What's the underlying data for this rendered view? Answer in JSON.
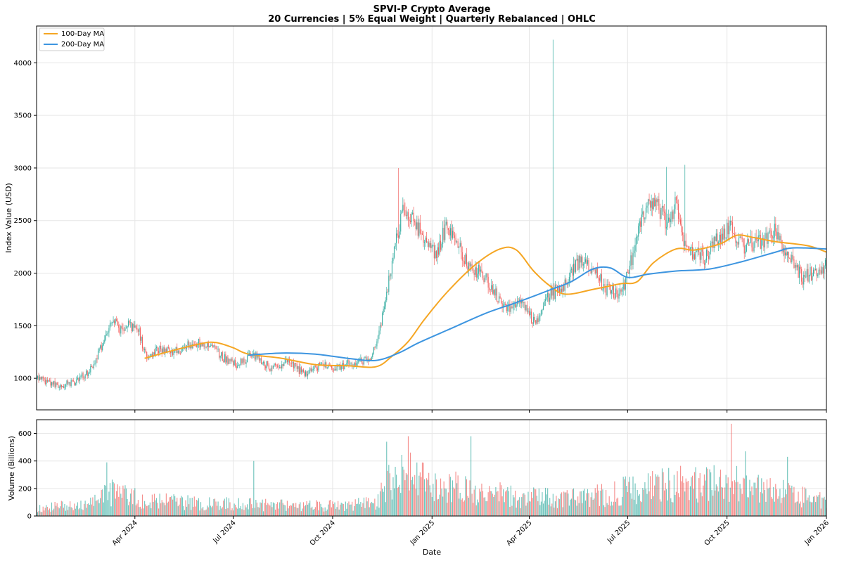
{
  "chart_data": [
    {
      "type": "candlestick",
      "title": "SPVI-P Crypto Average",
      "subtitle": "20 Currencies | 5% Equal Weight | Quarterly Rebalanced | OHLC",
      "ylabel": "Index Value (USD)",
      "ylim": [
        700,
        4350
      ],
      "yticks": [
        1000,
        1500,
        2000,
        2500,
        3000,
        3500,
        4000
      ],
      "xlim": [
        "2024-01-01",
        "2026-01-01"
      ],
      "xticks": [
        "2024-04-01",
        "2024-07-01",
        "2024-10-01",
        "2025-01-01",
        "2025-04-01",
        "2025-07-01",
        "2025-10-01",
        "2026-01-01"
      ],
      "xtick_labels": [
        "Apr 2024",
        "Jul 2024",
        "Oct 2024",
        "Jan 2025",
        "Apr 2025",
        "Jul 2025",
        "Oct 2025",
        "Jan 2026"
      ],
      "up_color": "#26a69a",
      "down_color": "#ef5350",
      "price_anchors": [
        [
          "2024-01-01",
          1010
        ],
        [
          "2024-01-20",
          930
        ],
        [
          "2024-02-05",
          960
        ],
        [
          "2024-02-20",
          1080
        ],
        [
          "2024-03-01",
          1300
        ],
        [
          "2024-03-10",
          1550
        ],
        [
          "2024-03-18",
          1470
        ],
        [
          "2024-03-25",
          1520
        ],
        [
          "2024-04-05",
          1430
        ],
        [
          "2024-04-12",
          1200
        ],
        [
          "2024-04-25",
          1280
        ],
        [
          "2024-05-10",
          1250
        ],
        [
          "2024-05-25",
          1340
        ],
        [
          "2024-06-10",
          1310
        ],
        [
          "2024-06-25",
          1170
        ],
        [
          "2024-07-05",
          1130
        ],
        [
          "2024-07-20",
          1230
        ],
        [
          "2024-08-05",
          1090
        ],
        [
          "2024-08-20",
          1160
        ],
        [
          "2024-09-05",
          1040
        ],
        [
          "2024-09-20",
          1130
        ],
        [
          "2024-10-05",
          1100
        ],
        [
          "2024-10-20",
          1160
        ],
        [
          "2024-11-05",
          1180
        ],
        [
          "2024-11-12",
          1400
        ],
        [
          "2024-11-20",
          1800
        ],
        [
          "2024-11-28",
          2250
        ],
        [
          "2024-12-05",
          2650
        ],
        [
          "2024-12-15",
          2500
        ],
        [
          "2024-12-25",
          2300
        ],
        [
          "2025-01-05",
          2200
        ],
        [
          "2025-01-15",
          2450
        ],
        [
          "2025-01-25",
          2300
        ],
        [
          "2025-02-03",
          2050
        ],
        [
          "2025-02-15",
          2000
        ],
        [
          "2025-03-01",
          1800
        ],
        [
          "2025-03-10",
          1650
        ],
        [
          "2025-03-25",
          1750
        ],
        [
          "2025-04-07",
          1500
        ],
        [
          "2025-04-20",
          1800
        ],
        [
          "2025-05-01",
          1850
        ],
        [
          "2025-05-15",
          2100
        ],
        [
          "2025-05-30",
          2050
        ],
        [
          "2025-06-10",
          1850
        ],
        [
          "2025-06-25",
          1800
        ],
        [
          "2025-07-05",
          2150
        ],
        [
          "2025-07-15",
          2550
        ],
        [
          "2025-07-25",
          2700
        ],
        [
          "2025-08-05",
          2500
        ],
        [
          "2025-08-15",
          2650
        ],
        [
          "2025-08-25",
          2200
        ],
        [
          "2025-09-10",
          2150
        ],
        [
          "2025-09-25",
          2350
        ],
        [
          "2025-10-05",
          2450
        ],
        [
          "2025-10-15",
          2250
        ],
        [
          "2025-11-01",
          2300
        ],
        [
          "2025-11-15",
          2400
        ],
        [
          "2025-11-25",
          2200
        ],
        [
          "2025-12-10",
          1950
        ],
        [
          "2025-12-25",
          2050
        ],
        [
          "2026-01-01",
          2080
        ]
      ],
      "spikes": [
        [
          "2025-04-23",
          4220
        ],
        [
          "2024-12-01",
          3000
        ],
        [
          "2025-08-06",
          3010
        ],
        [
          "2025-08-23",
          3030
        ]
      ],
      "series": [
        {
          "name": "100-Day MA",
          "color": "#f5a623",
          "points": [
            [
              "2024-04-10",
              1190
            ],
            [
              "2024-05-01",
              1250
            ],
            [
              "2024-06-01",
              1330
            ],
            [
              "2024-06-15",
              1340
            ],
            [
              "2024-07-01",
              1290
            ],
            [
              "2024-07-15",
              1230
            ],
            [
              "2024-08-15",
              1190
            ],
            [
              "2024-09-15",
              1130
            ],
            [
              "2024-10-15",
              1120
            ],
            [
              "2024-11-10",
              1110
            ],
            [
              "2024-11-25",
              1210
            ],
            [
              "2024-12-10",
              1350
            ],
            [
              "2024-12-25",
              1560
            ],
            [
              "2025-01-15",
              1820
            ],
            [
              "2025-02-10",
              2080
            ],
            [
              "2025-03-05",
              2230
            ],
            [
              "2025-03-20",
              2220
            ],
            [
              "2025-04-05",
              2020
            ],
            [
              "2025-04-20",
              1880
            ],
            [
              "2025-05-05",
              1800
            ],
            [
              "2025-06-01",
              1850
            ],
            [
              "2025-06-25",
              1900
            ],
            [
              "2025-07-10",
              1920
            ],
            [
              "2025-07-25",
              2100
            ],
            [
              "2025-08-15",
              2230
            ],
            [
              "2025-09-01",
              2220
            ],
            [
              "2025-09-25",
              2280
            ],
            [
              "2025-10-10",
              2360
            ],
            [
              "2025-10-25",
              2340
            ],
            [
              "2025-11-15",
              2300
            ],
            [
              "2025-12-15",
              2260
            ],
            [
              "2026-01-01",
              2200
            ]
          ]
        },
        {
          "name": "200-Day MA",
          "color": "#3d95e0",
          "points": [
            [
              "2024-07-15",
              1220
            ],
            [
              "2024-08-15",
              1240
            ],
            [
              "2024-09-15",
              1230
            ],
            [
              "2024-10-15",
              1190
            ],
            [
              "2024-11-10",
              1170
            ],
            [
              "2024-12-01",
              1240
            ],
            [
              "2024-12-20",
              1340
            ],
            [
              "2025-01-20",
              1480
            ],
            [
              "2025-02-20",
              1620
            ],
            [
              "2025-03-20",
              1720
            ],
            [
              "2025-04-20",
              1840
            ],
            [
              "2025-05-10",
              1920
            ],
            [
              "2025-05-30",
              2040
            ],
            [
              "2025-06-15",
              2050
            ],
            [
              "2025-07-01",
              1960
            ],
            [
              "2025-07-20",
              1990
            ],
            [
              "2025-08-15",
              2020
            ],
            [
              "2025-09-15",
              2040
            ],
            [
              "2025-10-15",
              2110
            ],
            [
              "2025-11-15",
              2200
            ],
            [
              "2025-12-01",
              2240
            ],
            [
              "2026-01-01",
              2230
            ]
          ]
        }
      ],
      "legend": {
        "position": "top-left",
        "entries": [
          "100-Day MA",
          "200-Day MA"
        ]
      }
    },
    {
      "type": "bar",
      "title": "",
      "xlabel": "Date",
      "ylabel": "Volume (Billions)",
      "ylim": [
        0,
        700
      ],
      "yticks": [
        0,
        200,
        400,
        600
      ],
      "xlim": [
        "2024-01-01",
        "2026-01-01"
      ],
      "volume_anchors": [
        [
          "2024-01-01",
          60
        ],
        [
          "2024-02-20",
          110
        ],
        [
          "2024-03-10",
          200
        ],
        [
          "2024-04-10",
          130
        ],
        [
          "2024-06-01",
          110
        ],
        [
          "2024-08-15",
          90
        ],
        [
          "2024-10-15",
          90
        ],
        [
          "2024-11-10",
          110
        ],
        [
          "2024-11-25",
          340
        ],
        [
          "2024-12-10",
          360
        ],
        [
          "2025-01-10",
          260
        ],
        [
          "2025-02-15",
          210
        ],
        [
          "2025-03-20",
          160
        ],
        [
          "2025-05-01",
          150
        ],
        [
          "2025-06-15",
          180
        ],
        [
          "2025-07-15",
          260
        ],
        [
          "2025-08-15",
          270
        ],
        [
          "2025-10-01",
          290
        ],
        [
          "2025-11-01",
          250
        ],
        [
          "2025-12-01",
          170
        ],
        [
          "2026-01-01",
          130
        ]
      ],
      "spikes": [
        [
          "2024-03-06",
          390
        ],
        [
          "2024-07-20",
          400
        ],
        [
          "2024-11-20",
          540
        ],
        [
          "2024-12-10",
          580
        ],
        [
          "2025-02-06",
          580
        ],
        [
          "2025-10-05",
          670
        ],
        [
          "2025-10-18",
          470
        ],
        [
          "2025-11-26",
          430
        ]
      ]
    }
  ]
}
